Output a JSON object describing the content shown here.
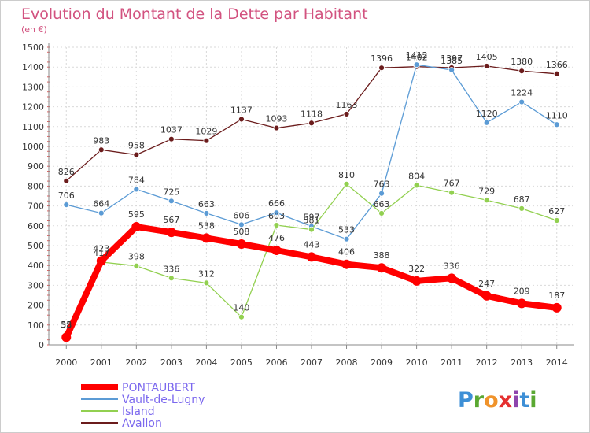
{
  "chart_data": {
    "type": "line",
    "title": "Evolution du Montant de la Dette par Habitant",
    "subtitle": "(en €)",
    "xlabel": "",
    "ylabel": "",
    "ylim": [
      0,
      1500
    ],
    "yticks": [
      0,
      100,
      200,
      300,
      400,
      500,
      600,
      700,
      800,
      900,
      1000,
      1100,
      1200,
      1300,
      1400,
      1500
    ],
    "grid": true,
    "legend_position": "bottom-left",
    "x": [
      "2000",
      "2001",
      "2002",
      "2003",
      "2004",
      "2005",
      "2006",
      "2007",
      "2008",
      "2009",
      "2010",
      "2011",
      "2012",
      "2013",
      "2014"
    ],
    "series": [
      {
        "name": "PONTAUBERT",
        "color": "#ff0000",
        "values": [
          38,
          423,
          595,
          567,
          538,
          508,
          476,
          443,
          406,
          388,
          322,
          336,
          247,
          209,
          187
        ],
        "labels": [
          "38",
          "423",
          "595",
          "567",
          "538",
          "508",
          "476",
          "443",
          "406",
          "388",
          "322",
          "336",
          "247",
          "209",
          "187"
        ]
      },
      {
        "name": "Vault-de-Lugny",
        "color": "#5b9bd5",
        "values": [
          706,
          664,
          784,
          725,
          663,
          606,
          666,
          597,
          533,
          763,
          1412,
          1385,
          1120,
          1224,
          1110
        ],
        "labels": [
          "706",
          "664",
          "784",
          "725",
          "663",
          "606",
          "666",
          "597",
          "533",
          "763",
          "1412",
          "1385",
          "1120",
          "1224",
          "1110"
        ]
      },
      {
        "name": "Island",
        "color": "#92d050",
        "values": [
          55,
          417,
          398,
          336,
          312,
          140,
          603,
          581,
          810,
          663,
          804,
          767,
          729,
          687,
          627
        ],
        "labels": [
          "55",
          "417",
          "398",
          "336",
          "312",
          "140",
          "603",
          "581",
          "810",
          "663",
          "804",
          "767",
          "729",
          "687",
          "627"
        ]
      },
      {
        "name": "Avallon",
        "color": "#6b1c1c",
        "values": [
          826,
          983,
          958,
          1037,
          1029,
          1137,
          1093,
          1118,
          1163,
          1396,
          1402,
          1397,
          1405,
          1380,
          1366
        ],
        "labels": [
          "826",
          "983",
          "958",
          "1037",
          "1029",
          "1137",
          "1093",
          "1118",
          "1163",
          "1396",
          "1402",
          "1397",
          "1405",
          "1380",
          "1366"
        ]
      }
    ]
  },
  "branding": {
    "logo_text": "Proxiti",
    "logo_letters": [
      "P",
      "r",
      "o",
      "x",
      "i",
      "t",
      "i"
    ],
    "logo_colors": [
      "#3d8fd6",
      "#5aa832",
      "#f0932b",
      "#e53030",
      "#8e44ad",
      "#3d8fd6",
      "#5aa832"
    ]
  }
}
